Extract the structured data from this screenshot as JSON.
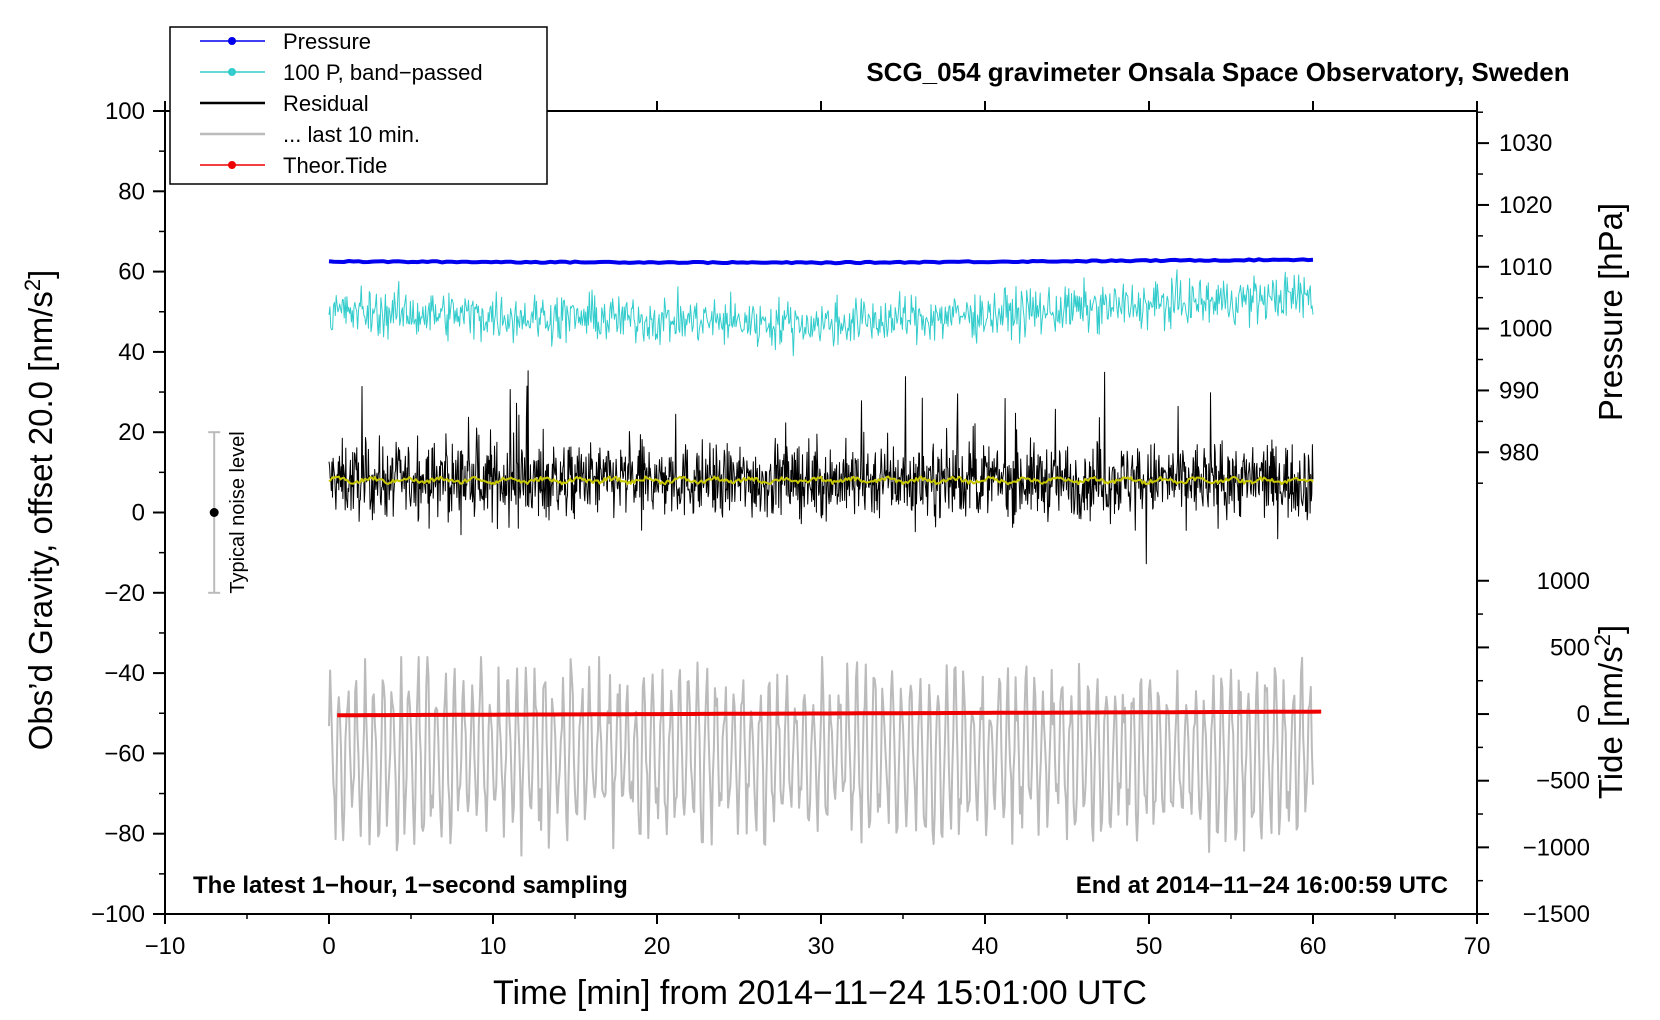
{
  "chart_data": {
    "type": "line",
    "title": "SCG_054 gravimeter Onsala Space Observatory, Sweden",
    "xlabel": "Time [min] from 2014−11−24 15:01:00 UTC",
    "ylabel": "Obs’d Gravity, offset 20.0 [nm/s²]",
    "ylabel_parts": [
      "Obs’d Gravity, offset 20.0 [nm/s",
      "2",
      "]"
    ],
    "xlim": [
      -10,
      70
    ],
    "ylim": [
      -100,
      100
    ],
    "xticks": [
      -10,
      0,
      10,
      20,
      30,
      40,
      50,
      60,
      70
    ],
    "xtick_labels": [
      "−10",
      "0",
      "10",
      "20",
      "30",
      "40",
      "50",
      "60",
      "70"
    ],
    "yticks": [
      -100,
      -80,
      -60,
      -40,
      -20,
      0,
      20,
      40,
      60,
      80,
      100
    ],
    "ytick_labels": [
      "−100",
      "−80",
      "−60",
      "−40",
      "−20",
      "0",
      "20",
      "40",
      "60",
      "80",
      "100"
    ],
    "pressure_axis": {
      "label": "Pressure [hPa]",
      "ticks": [
        980,
        990,
        1000,
        1010,
        1020,
        1030
      ],
      "tick_labels": [
        "980",
        "990",
        "1000",
        "1010",
        "1020",
        "1030"
      ],
      "maps_to_gravity": {
        "hpa": [
          980,
          1030
        ],
        "grav": [
          15,
          92
        ]
      }
    },
    "tide_axis": {
      "label": "Tide [nm/s²]",
      "label_parts": [
        "Tide [nm/s",
        "2",
        "]"
      ],
      "ticks": [
        -1500,
        -1000,
        -500,
        0,
        500,
        1000
      ],
      "tick_labels": [
        "−1500",
        "−1000",
        "−500",
        "0",
        "500",
        "1000"
      ],
      "maps_to_gravity": {
        "tide": [
          -1500,
          1000
        ],
        "grav": [
          -100,
          -17
        ]
      }
    },
    "legend": {
      "placement": "top-left",
      "entries": [
        {
          "label": "Pressure",
          "color": "#0000ee",
          "marker": true
        },
        {
          "label": "100 P, band−passed",
          "color": "#33cccc",
          "marker": true
        },
        {
          "label": "Residual",
          "color": "#000000",
          "marker": false
        },
        {
          "label": "... last 10 min.",
          "color": "#bbbbbb",
          "marker": false
        },
        {
          "label": "Theor.Tide",
          "color": "#ee0000",
          "marker": true
        }
      ]
    },
    "noise_level": {
      "label": "Typical noise level",
      "x": -7,
      "center": 0,
      "low": -20,
      "high": 20
    },
    "series": [
      {
        "name": "Pressure",
        "color": "#0000ee",
        "x_range": [
          0,
          60
        ],
        "approx_values": {
          "start": 62.5,
          "mid": 62.2,
          "end": 63.0
        },
        "amplitude": 0.3
      },
      {
        "name": "100 P, band−passed",
        "color": "#33cccc",
        "x_range": [
          0,
          60
        ],
        "approx_values": {
          "start": 50,
          "mid": 47,
          "end": 54
        },
        "amplitude": 6
      },
      {
        "name": "Residual",
        "color": "#000000",
        "x_range": [
          0,
          60
        ],
        "mean": 8,
        "amplitude": 12,
        "max": 38,
        "min": -21
      },
      {
        "name": "Residual mean",
        "color": "#c8c800",
        "x_range": [
          0,
          60
        ],
        "mean": 8,
        "amplitude": 1
      },
      {
        "name": "... last 10 min.",
        "color": "#bbbbbb",
        "x_range": [
          0,
          60
        ],
        "mean": -60,
        "amplitude": 15,
        "max": -36,
        "min": -88
      },
      {
        "name": "Theor.Tide",
        "color": "#ee0000",
        "x_range": [
          0.5,
          60.5
        ],
        "approx_values": {
          "start": -50.5,
          "end": -49.6
        },
        "amplitude": 0
      }
    ],
    "annotations": {
      "bottom_left": "The latest 1−hour, 1−second sampling",
      "bottom_right": "End at 2014−11−24 16:00:59 UTC"
    }
  }
}
